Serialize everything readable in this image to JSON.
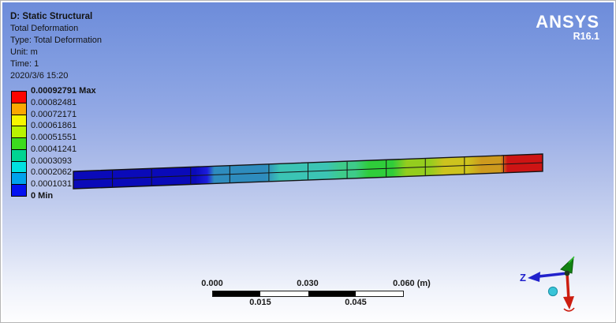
{
  "header": {
    "title": "D: Static Structural",
    "lines": [
      "Total Deformation",
      "Type: Total Deformation",
      "Unit: m",
      "Time: 1",
      "2020/3/6 15:20"
    ]
  },
  "brand": {
    "name": "ANSYS",
    "version": "R16.1"
  },
  "legend": {
    "bands": [
      "#fb0500",
      "#fba800",
      "#f6f600",
      "#b9f400",
      "#3cdc1e",
      "#00d492",
      "#00e0e0",
      "#00a2ec",
      "#0411f0"
    ],
    "labels": [
      {
        "text": "0.00092791 Max"
      },
      {
        "text": "0.00082481"
      },
      {
        "text": "0.00072171"
      },
      {
        "text": "0.00061861"
      },
      {
        "text": "0.00051551"
      },
      {
        "text": "0.00041241"
      },
      {
        "text": "0.0003093"
      },
      {
        "text": "0.0002062"
      },
      {
        "text": "0.0001031"
      },
      {
        "text": "0 Min"
      }
    ]
  },
  "beam": {
    "columns": 12,
    "edge_color": "#141414",
    "gradient": [
      {
        "p": 0.0,
        "c": "#0a0ab9"
      },
      {
        "p": 0.26,
        "c": "#0a0ab9"
      },
      {
        "p": 0.285,
        "c": "#1c1cdc"
      },
      {
        "p": 0.3,
        "c": "#2e8cbe"
      },
      {
        "p": 0.41,
        "c": "#2e8cbe"
      },
      {
        "p": 0.44,
        "c": "#3bc4b4"
      },
      {
        "p": 0.54,
        "c": "#3bc4b4"
      },
      {
        "p": 0.57,
        "c": "#3ecb8a"
      },
      {
        "p": 0.6,
        "c": "#3ecb8a"
      },
      {
        "p": 0.63,
        "c": "#2fcd3a"
      },
      {
        "p": 0.68,
        "c": "#2fcd3a"
      },
      {
        "p": 0.71,
        "c": "#94cd1e"
      },
      {
        "p": 0.76,
        "c": "#94cd1e"
      },
      {
        "p": 0.79,
        "c": "#cdc31e"
      },
      {
        "p": 0.84,
        "c": "#cdc31e"
      },
      {
        "p": 0.87,
        "c": "#cd9a1e"
      },
      {
        "p": 0.91,
        "c": "#cd9a1e"
      },
      {
        "p": 0.925,
        "c": "#cd1414"
      },
      {
        "p": 1.0,
        "c": "#cd1414"
      }
    ]
  },
  "scale_bar": {
    "top_labels": [
      "0.000",
      "0.030",
      "0.060 (m)"
    ],
    "bottom_labels": [
      "0.015",
      "0.045"
    ],
    "segment_colors": [
      "#000000",
      "#ffffff",
      "#000000",
      "#ffffff"
    ]
  },
  "triad": {
    "z_label": "Z",
    "z_axis_color": "#2121cc",
    "down_axis_color": "#cc1d10",
    "up_axis_color": "#128212",
    "iso_ball_color": "#38c4d8"
  }
}
